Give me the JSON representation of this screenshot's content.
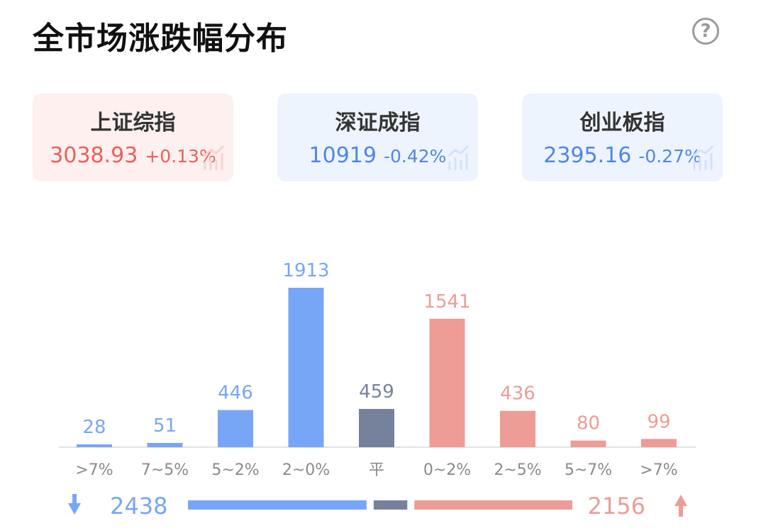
{
  "header": {
    "title": "全市场涨跌幅分布",
    "help_icon": "help-icon"
  },
  "indices": [
    {
      "name": "上证综指",
      "value": "3038.93",
      "change": "+0.13%",
      "trend": "up"
    },
    {
      "name": "深证成指",
      "value": "10919",
      "change": "-0.42%",
      "trend": "down"
    },
    {
      "name": "创业板指",
      "value": "2395.16",
      "change": "-0.27%",
      "trend": "down"
    }
  ],
  "colors": {
    "up": "#ee9c96",
    "down": "#77a6f6",
    "flat": "#76829c",
    "up_text": "#e9615a",
    "down_text": "#4f86e8"
  },
  "chart_data": {
    "type": "bar",
    "categories": [
      ">7%",
      "7~5%",
      "5~2%",
      "2~0%",
      "平",
      "0~2%",
      "2~5%",
      "5~7%",
      ">7%"
    ],
    "values": [
      28,
      51,
      446,
      1913,
      459,
      1541,
      436,
      80,
      99
    ],
    "bar_groups": [
      "down",
      "down",
      "down",
      "down",
      "flat",
      "up",
      "up",
      "up",
      "up"
    ],
    "ylim": [
      0,
      1913
    ]
  },
  "summary": {
    "down_total": "2438",
    "up_total": "2156",
    "flat_total": 459
  }
}
